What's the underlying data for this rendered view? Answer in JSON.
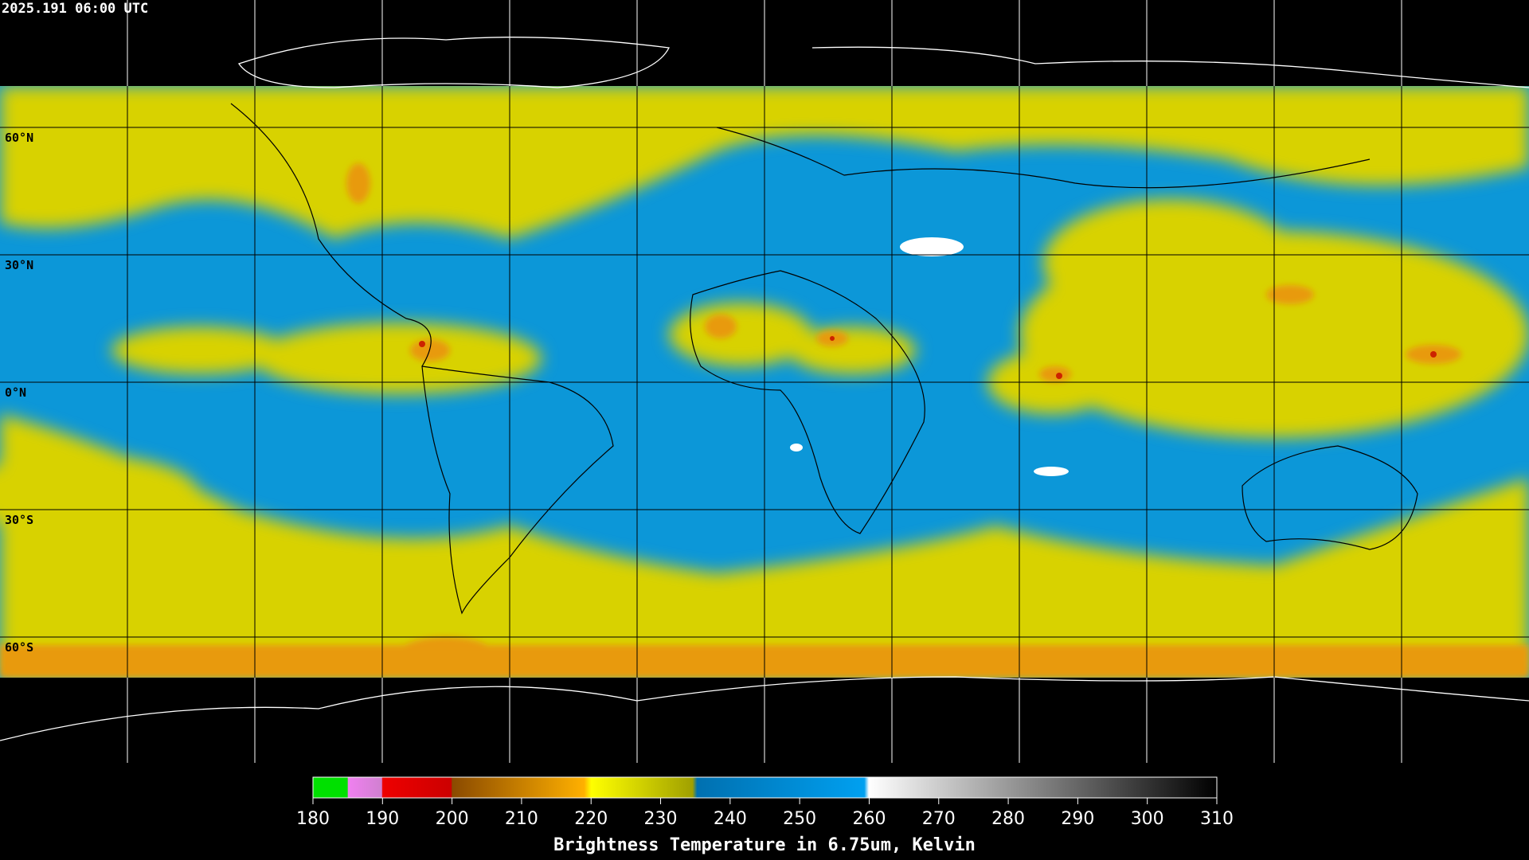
{
  "header": {
    "timestamp": "2025.191 06:00 UTC"
  },
  "map": {
    "latitude_labels": [
      "60°N",
      "30°N",
      "0°N",
      "30°S",
      "60°S"
    ]
  },
  "colorbar": {
    "range": [
      180,
      310
    ],
    "ticks": [
      180,
      190,
      200,
      210,
      220,
      230,
      240,
      250,
      260,
      270,
      280,
      290,
      300,
      310
    ],
    "label": "Brightness Temperature in 6.75um, Kelvin"
  }
}
